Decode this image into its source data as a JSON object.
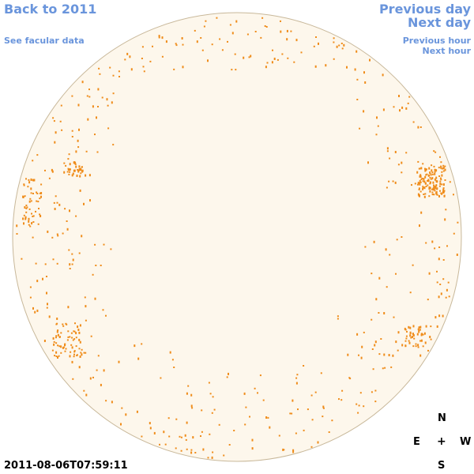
{
  "nav": {
    "back": "Back to 2011",
    "facular": "See facular data",
    "previous_day": "Previous day",
    "next_day": "Next day",
    "previous_hour": "Previous hour",
    "next_hour": "Next hour"
  },
  "compass": {
    "north": "N",
    "east": "E",
    "center": "+",
    "west": "W",
    "south": "S"
  },
  "timestamp": "2011-08-06T07:59:11",
  "colors": {
    "disk": "#fdf7ec",
    "disk_edge": "#c8b89a",
    "marker": "#ef8c1a",
    "link": "#6a95dc"
  }
}
